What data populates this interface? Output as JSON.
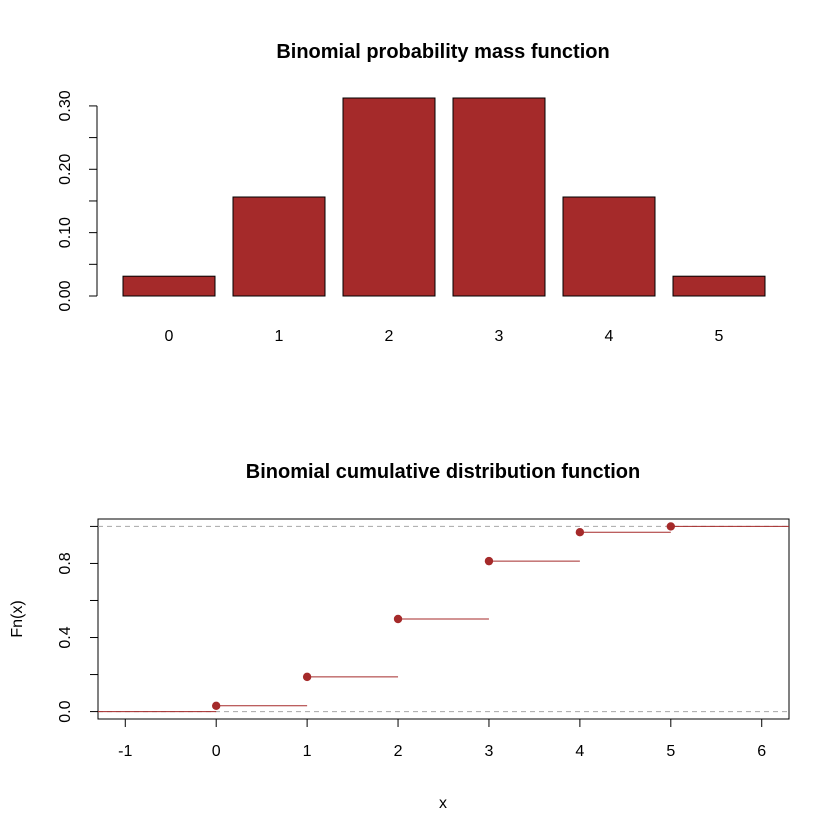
{
  "chart_data": [
    {
      "type": "bar",
      "title": "Binomial probability mass function",
      "categories": [
        "0",
        "1",
        "2",
        "3",
        "4",
        "5"
      ],
      "values": [
        0.03125,
        0.15625,
        0.3125,
        0.3125,
        0.15625,
        0.03125
      ],
      "ylim": [
        0,
        0.3125
      ],
      "yticks": [
        0.0,
        0.1,
        0.2,
        0.3
      ],
      "ytick_labels": [
        "0.00",
        "0.10",
        "0.20",
        "0.30"
      ],
      "yminor_ticks": [
        0.05,
        0.15,
        0.25
      ],
      "bar_color": "#a52a2a"
    },
    {
      "type": "line",
      "title": "Binomial cumulative distribution function",
      "xlabel": "x",
      "ylabel": "Fn(x)",
      "xlim": [
        -1.3,
        6.3
      ],
      "ylim": [
        -0.04,
        1.04
      ],
      "xticks": [
        -1,
        0,
        1,
        2,
        3,
        4,
        5,
        6
      ],
      "xtick_labels": [
        "-1",
        "0",
        "1",
        "2",
        "3",
        "4",
        "5",
        "6"
      ],
      "yticks": [
        0.0,
        0.4,
        0.8
      ],
      "ytick_labels": [
        "0.0",
        "0.4",
        "0.8"
      ],
      "yminor_ticks": [
        0.2,
        0.6,
        1.0
      ],
      "x": [
        0,
        1,
        2,
        3,
        4,
        5
      ],
      "y": [
        0.03125,
        0.1875,
        0.5,
        0.8125,
        0.96875,
        1.0
      ],
      "reference_lines": [
        0,
        1
      ],
      "point_color": "#a52a2a"
    }
  ]
}
